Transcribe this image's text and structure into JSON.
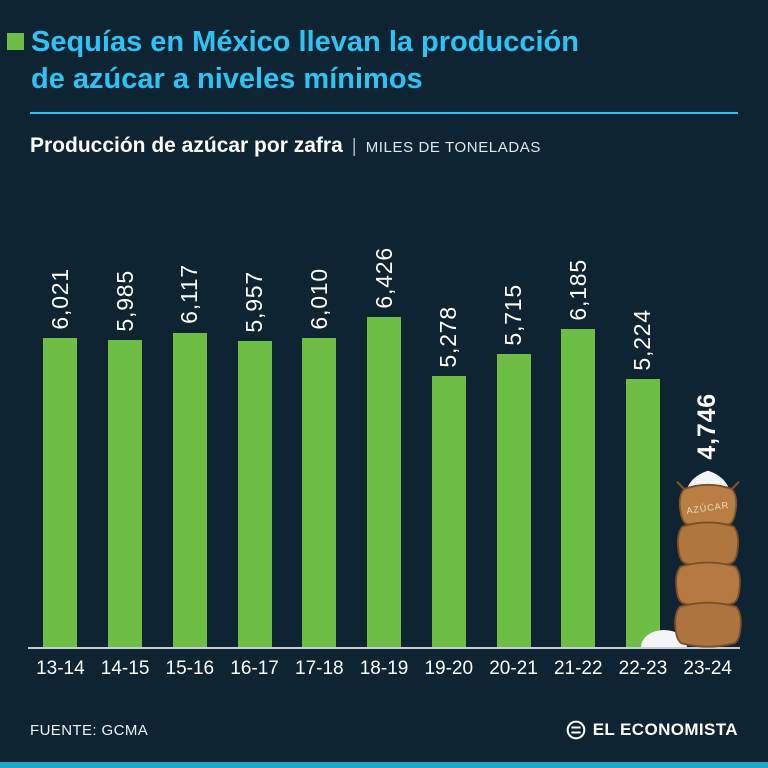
{
  "accent": {
    "background": "#0e2432",
    "cyan": "#29c5f4",
    "green": "#6ebe45",
    "axis": "#c9ced3",
    "bottom_strip": "#1ca9c9"
  },
  "header": {
    "title_line1": "Sequías en México llevan la producción",
    "title_line2": "de azúcar a niveles mínimos"
  },
  "subtitle": {
    "main": "Producción de azúcar por zafra",
    "separator": "|",
    "units": "MILES DE TONELADAS"
  },
  "chart_data": {
    "type": "bar",
    "title": "Producción de azúcar por zafra",
    "ylabel": "MILES DE TONELADAS",
    "xlabel": "",
    "categories": [
      "13-14",
      "14-15",
      "15-16",
      "16-17",
      "17-18",
      "18-19",
      "19-20",
      "20-21",
      "21-22",
      "22-23",
      "23-24"
    ],
    "values": [
      6021,
      5985,
      6117,
      5957,
      6010,
      6426,
      5278,
      5715,
      6185,
      5224,
      4746
    ],
    "value_labels": [
      "6,021",
      "5,985",
      "6,117",
      "5,957",
      "6,010",
      "6,426",
      "5,278",
      "5,715",
      "6,185",
      "5,224",
      "4,746"
    ],
    "ylim": [
      0,
      6500
    ],
    "grid": false,
    "legend": "none",
    "bar_color": "#6ebe45",
    "bold_label_index": 10,
    "illustration_index": 10,
    "illustration": "sugar-sacks",
    "illustration_label": "AZÚCAR",
    "pile_index": 9
  },
  "footer": {
    "source": "FUENTE: GCMA",
    "brand": "EL ECONOMISTA"
  }
}
